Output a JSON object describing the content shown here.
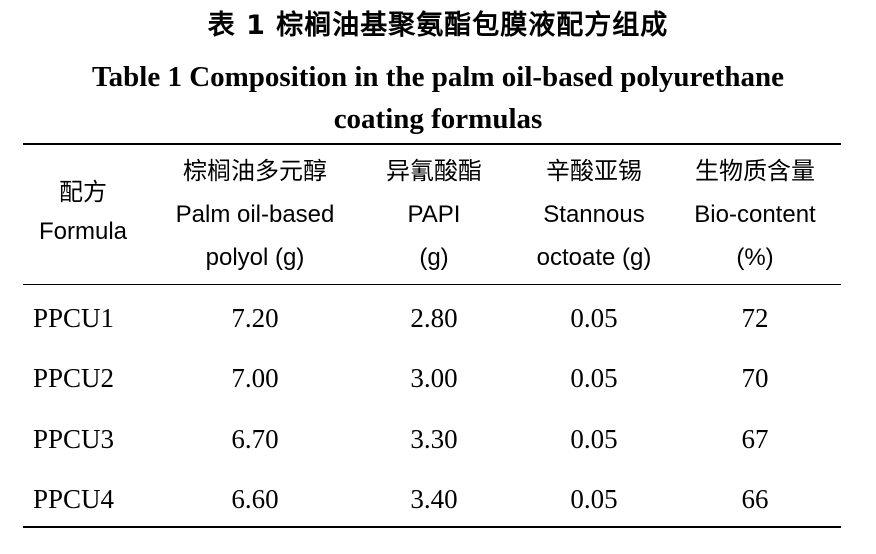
{
  "title": {
    "cn": "表 1   棕榈油基聚氨酯包膜液配方组成",
    "en_line1": "Table 1   Composition in the palm oil-based polyurethane",
    "en_line2": "coating formulas"
  },
  "table": {
    "headers": [
      {
        "cn": "配方",
        "en": "Formula"
      },
      {
        "cn": "棕榈油多元醇",
        "en1": "Palm oil-based",
        "en2": "polyol (g)"
      },
      {
        "cn": "异氰酸酯",
        "en1": "PAPI",
        "en2": "(g)"
      },
      {
        "cn": "辛酸亚锡",
        "en1": "Stannous",
        "en2": "octoate (g)"
      },
      {
        "cn": "生物质含量",
        "en1": "Bio-content",
        "en2": "(%)"
      }
    ],
    "rows": [
      [
        "PPCU1",
        "7.20",
        "2.80",
        "0.05",
        "72"
      ],
      [
        "PPCU2",
        "7.00",
        "3.00",
        "0.05",
        "70"
      ],
      [
        "PPCU3",
        "6.70",
        "3.30",
        "0.05",
        "67"
      ],
      [
        "PPCU4",
        "6.60",
        "3.40",
        "0.05",
        "66"
      ]
    ]
  }
}
